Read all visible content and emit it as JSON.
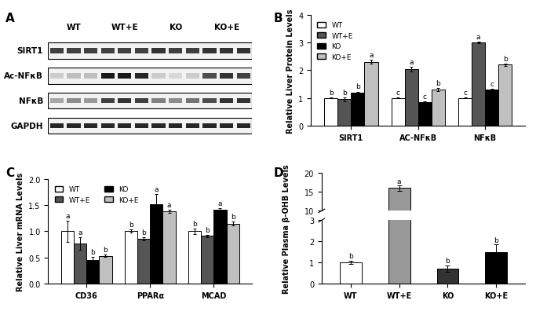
{
  "blot": {
    "panel": "A",
    "groups": [
      "WT",
      "WT+E",
      "KO",
      "KO+E"
    ],
    "rows": [
      {
        "name": "SIRT1",
        "band_darkness": [
          0.75,
          0.75,
          0.75,
          0.75,
          0.75,
          0.75,
          0.8,
          0.75,
          0.75,
          0.8,
          0.8,
          0.8
        ]
      },
      {
        "name": "Ac-NFκB",
        "band_darkness": [
          0.2,
          0.25,
          0.25,
          0.9,
          0.9,
          0.85,
          0.2,
          0.15,
          0.2,
          0.7,
          0.8,
          0.75
        ]
      },
      {
        "name": "NFκB",
        "band_darkness": [
          0.35,
          0.45,
          0.4,
          0.75,
          0.8,
          0.75,
          0.5,
          0.45,
          0.55,
          0.7,
          0.8,
          0.8
        ]
      },
      {
        "name": "GAPDH",
        "band_darkness": [
          0.85,
          0.85,
          0.85,
          0.85,
          0.85,
          0.85,
          0.85,
          0.85,
          0.85,
          0.85,
          0.85,
          0.85
        ]
      }
    ]
  },
  "chart_data": [
    {
      "panel": "B",
      "type": "bar",
      "y_label": "Relative Liver Protein Levels",
      "categories": [
        "SIRT1",
        "AC-NFκB",
        "NFκB"
      ],
      "series": [
        {
          "name": "WT",
          "color": "#ffffff",
          "values": [
            1.0,
            1.0,
            1.0
          ],
          "error": [
            0.02,
            0.02,
            0.02
          ],
          "annotations": [
            "b",
            "c",
            "c"
          ]
        },
        {
          "name": "WT+E",
          "color": "#555555",
          "values": [
            0.95,
            2.05,
            3.0
          ],
          "error": [
            0.07,
            0.08,
            0.03
          ],
          "annotations": [
            "b",
            "a",
            "a"
          ]
        },
        {
          "name": "KO",
          "color": "#000000",
          "values": [
            1.2,
            0.85,
            1.3
          ],
          "error": [
            0.03,
            0.03,
            0.03
          ],
          "annotations": [
            "b",
            "c",
            "c"
          ]
        },
        {
          "name": "KO+E",
          "color": "#c0c0c0",
          "values": [
            2.3,
            1.3,
            2.2
          ],
          "error": [
            0.07,
            0.05,
            0.04
          ],
          "annotations": [
            "a",
            "b",
            "b"
          ]
        }
      ],
      "ylim": [
        0,
        4
      ],
      "yticks": [
        0,
        1,
        2,
        3,
        4
      ],
      "legend": "upper left"
    },
    {
      "panel": "C",
      "type": "bar",
      "y_label": "Relative Liver mRNA Levels",
      "categories": [
        "CD36",
        "PPARα",
        "MCAD"
      ],
      "series": [
        {
          "name": "WT",
          "color": "#ffffff",
          "values": [
            1.0,
            1.0,
            1.0
          ],
          "error": [
            0.2,
            0.03,
            0.05
          ],
          "annotations": [
            "a",
            "b",
            "b"
          ]
        },
        {
          "name": "WT+E",
          "color": "#555555",
          "values": [
            0.76,
            0.86,
            0.91
          ],
          "error": [
            0.12,
            0.03,
            0.02
          ],
          "annotations": [
            "a",
            "b",
            "b"
          ]
        },
        {
          "name": "KO",
          "color": "#000000",
          "values": [
            0.45,
            1.52,
            1.42
          ],
          "error": [
            0.06,
            0.2,
            0.02
          ],
          "annotations": [
            "b",
            "a",
            "a"
          ]
        },
        {
          "name": "KO+E",
          "color": "#c0c0c0",
          "values": [
            0.53,
            1.39,
            1.15
          ],
          "error": [
            0.02,
            0.03,
            0.04
          ],
          "annotations": [
            "b",
            "a",
            "b"
          ]
        }
      ],
      "ylim": [
        0,
        2
      ],
      "yticks": [
        {
          "value": 0,
          "label": "0.0"
        },
        {
          "value": 0.5,
          "label": "0.5"
        },
        {
          "value": 1,
          "label": "1.0"
        },
        {
          "value": 1.5,
          "label": "1.5"
        },
        {
          "value": 2,
          "label": "2.0"
        }
      ],
      "legend": "upper left"
    },
    {
      "panel": "D",
      "type": "bar",
      "y_label": "Relative Plasma β-OHB Levels",
      "categories": [
        "WT",
        "WT+E",
        "KO",
        "KO+E"
      ],
      "values": [
        1.0,
        16.0,
        0.7,
        1.5
      ],
      "error": [
        0.08,
        0.8,
        0.15,
        0.35
      ],
      "annotations": [
        "b",
        "a",
        "b",
        "b"
      ],
      "colors": [
        "#ffffff",
        "#999999",
        "#333333",
        "#000000"
      ],
      "broken_axis": {
        "lower": {
          "ylim": [
            0,
            3
          ],
          "yticks": [
            0,
            1,
            2,
            3
          ]
        },
        "upper": {
          "ylim": [
            10,
            20
          ],
          "yticks": [
            10,
            15,
            20
          ]
        }
      }
    }
  ]
}
